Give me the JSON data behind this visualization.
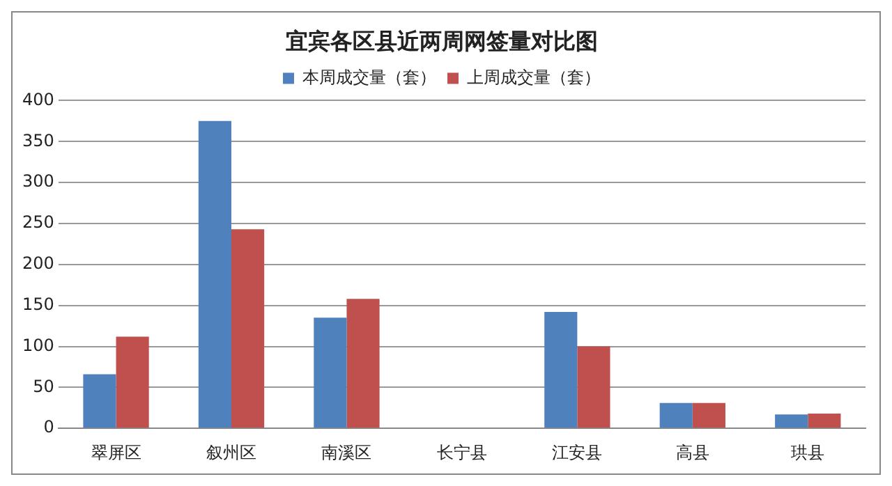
{
  "chart_data": {
    "type": "bar",
    "title": "宜宾各区县近两周网签量对比图",
    "categories": [
      "翠屏区",
      "叙州区",
      "南溪区",
      "长宁县",
      "江安县",
      "高县",
      "珙县"
    ],
    "series": [
      {
        "name": "本周成交量（套）",
        "color": "#4f81bd",
        "values": [
          66,
          375,
          135,
          0,
          142,
          31,
          17
        ]
      },
      {
        "name": "上周成交量（套）",
        "color": "#c0504d",
        "values": [
          112,
          243,
          158,
          0,
          100,
          31,
          18
        ]
      }
    ],
    "ylim": [
      0,
      400
    ],
    "yticks": [
      0,
      50,
      100,
      150,
      200,
      250,
      300,
      350,
      400
    ],
    "grid": "y",
    "legend": "top"
  }
}
